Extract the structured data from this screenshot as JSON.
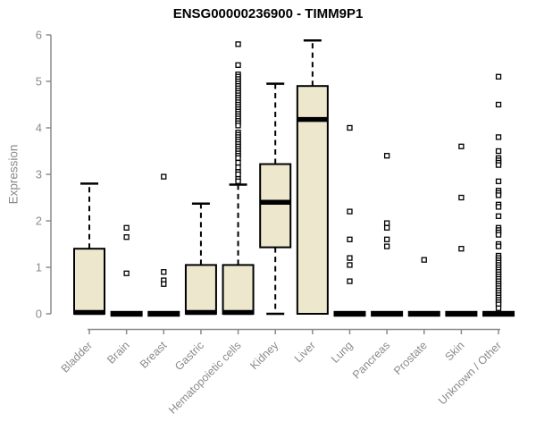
{
  "page": {
    "background": "#ffffff"
  },
  "chart_data": {
    "type": "boxplot",
    "title": "ENSG00000236900 - TIMM9P1",
    "ylabel": "Expression",
    "xlabel": "",
    "ylim": [
      0,
      6
    ],
    "yticks": [
      0,
      1,
      2,
      3,
      4,
      5,
      6
    ],
    "grid": false,
    "legend": false,
    "categories": [
      "Bladder",
      "Brain",
      "Breast",
      "Gastric",
      "Hematopoietic cells",
      "Kidney",
      "Liver",
      "Lung",
      "Pancreas",
      "Prostate",
      "Skin",
      "Unknown / Other"
    ],
    "boxes": [
      {
        "label": "Bladder",
        "q1": 0,
        "median": 0.03,
        "q3": 1.4,
        "whisker_low": 0,
        "whisker_high": 2.8,
        "outliers": []
      },
      {
        "label": "Brain",
        "q1": 0,
        "median": 0,
        "q3": 0,
        "whisker_low": 0,
        "whisker_high": 0,
        "outliers": [
          1.85,
          1.65,
          0.87
        ]
      },
      {
        "label": "Breast",
        "q1": 0,
        "median": 0,
        "q3": 0,
        "whisker_low": 0,
        "whisker_high": 0,
        "outliers": [
          2.95,
          0.9,
          0.72,
          0.64
        ]
      },
      {
        "label": "Gastric",
        "q1": 0,
        "median": 0.03,
        "q3": 1.05,
        "whisker_low": 0,
        "whisker_high": 2.37,
        "outliers": []
      },
      {
        "label": "Hematopoietic cells",
        "q1": 0,
        "median": 0.03,
        "q3": 1.05,
        "whisker_low": 0,
        "whisker_high": 2.78,
        "outliers": [
          5.8,
          5.35,
          5.15,
          5.1,
          5.05,
          5.0,
          4.95,
          4.9,
          4.85,
          4.8,
          4.75,
          4.7,
          4.65,
          4.6,
          4.55,
          4.5,
          4.45,
          4.4,
          4.35,
          4.3,
          4.25,
          4.2,
          4.15,
          4.1,
          4.05,
          3.9,
          3.85,
          3.8,
          3.75,
          3.7,
          3.65,
          3.6,
          3.55,
          3.5,
          3.45,
          3.4,
          3.35,
          3.25,
          3.15,
          3.05,
          3.0,
          2.9,
          2.85
        ]
      },
      {
        "label": "Kidney",
        "q1": 1.43,
        "median": 2.4,
        "q3": 3.22,
        "whisker_low": 0,
        "whisker_high": 4.95,
        "outliers": []
      },
      {
        "label": "Liver",
        "q1": 0,
        "median": 4.18,
        "q3": 4.9,
        "whisker_low": 0,
        "whisker_high": 5.88,
        "outliers": []
      },
      {
        "label": "Lung",
        "q1": 0,
        "median": 0,
        "q3": 0,
        "whisker_low": 0,
        "whisker_high": 0,
        "outliers": [
          4.0,
          2.2,
          1.6,
          1.2,
          1.05,
          0.7
        ]
      },
      {
        "label": "Pancreas",
        "q1": 0,
        "median": 0,
        "q3": 0,
        "whisker_low": 0,
        "whisker_high": 0,
        "outliers": [
          3.4,
          1.95,
          1.85,
          1.6,
          1.45
        ]
      },
      {
        "label": "Prostate",
        "q1": 0,
        "median": 0,
        "q3": 0,
        "whisker_low": 0,
        "whisker_high": 0,
        "outliers": [
          1.16
        ]
      },
      {
        "label": "Skin",
        "q1": 0,
        "median": 0,
        "q3": 0,
        "whisker_low": 0,
        "whisker_high": 0,
        "outliers": [
          3.6,
          2.5,
          1.4
        ]
      },
      {
        "label": "Unknown / Other",
        "q1": 0,
        "median": 0,
        "q3": 0,
        "whisker_low": 0,
        "whisker_high": 0,
        "outliers": [
          5.1,
          4.5,
          3.8,
          3.5,
          3.35,
          3.3,
          3.25,
          3.2,
          2.85,
          2.65,
          2.6,
          2.55,
          2.35,
          2.3,
          2.1,
          1.85,
          1.8,
          1.75,
          1.7,
          1.5,
          1.45,
          1.25,
          1.2,
          1.15,
          1.1,
          1.05,
          1.0,
          0.95,
          0.9,
          0.85,
          0.8,
          0.75,
          0.7,
          0.65,
          0.6,
          0.55,
          0.5,
          0.45,
          0.4,
          0.35,
          0.3,
          0.25,
          0.2,
          0.12
        ]
      }
    ],
    "colors": {
      "box_fill": "#EDE8CD",
      "box_stroke": "#000000",
      "median": "#000000",
      "whisker": "#000000",
      "outlier_stroke": "#000000",
      "outlier_fill": "#FFFFFF",
      "axis": "#8B8B8B",
      "title": "#000000"
    }
  }
}
